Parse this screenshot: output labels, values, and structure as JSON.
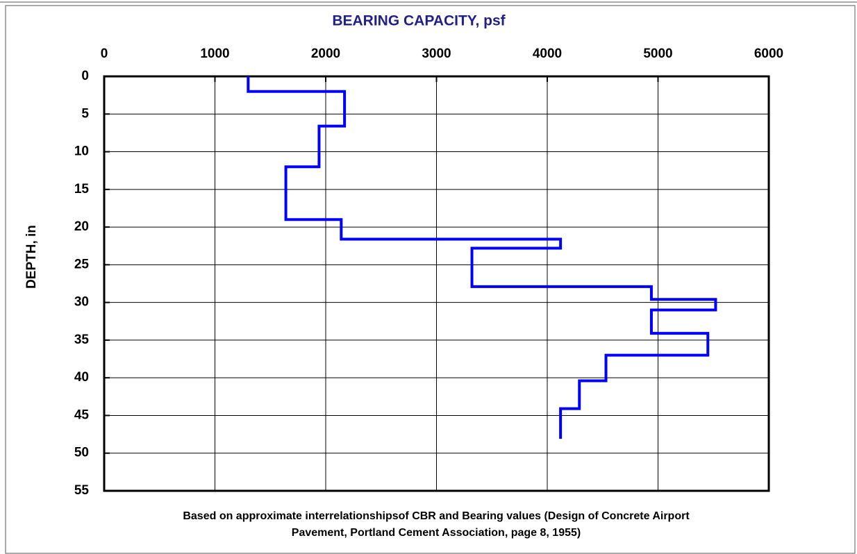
{
  "chart_data": {
    "type": "line",
    "title": "BEARING CAPACITY, psf",
    "y_label": "DEPTH, in",
    "footnote": [
      "Based on approximate interrelationshipsof CBR and Bearing values (Design of Concrete Airport",
      "Pavement, Portland Cement Association, page 8, 1955)"
    ],
    "xlim": [
      0,
      6000
    ],
    "xticks": [
      0,
      1000,
      2000,
      3000,
      4000,
      5000,
      6000
    ],
    "ylim": [
      0,
      55
    ],
    "yticks": [
      0,
      5,
      10,
      15,
      20,
      25,
      30,
      35,
      40,
      45,
      50,
      55
    ],
    "y_inverted": true,
    "x_axis_position": "top",
    "grid": true,
    "series": [
      {
        "color": "#0000ff",
        "x": [
          1300,
          1300,
          2170,
          2170,
          1940,
          1940,
          1640,
          1640,
          2140,
          2140,
          4120,
          4120,
          3320,
          3320,
          4940,
          4940,
          5520,
          5520,
          4940,
          4940,
          5450,
          5450,
          4530,
          4530,
          4290,
          4290,
          4120,
          4120
        ],
        "values": [
          0,
          2,
          2,
          6.6,
          6.6,
          12,
          12,
          19,
          19,
          21.6,
          21.6,
          22.8,
          22.8,
          27.9,
          27.9,
          29.6,
          29.6,
          31,
          31,
          34.1,
          34.1,
          37,
          37,
          40.4,
          40.4,
          44.1,
          44.1,
          48.1
        ]
      }
    ]
  }
}
